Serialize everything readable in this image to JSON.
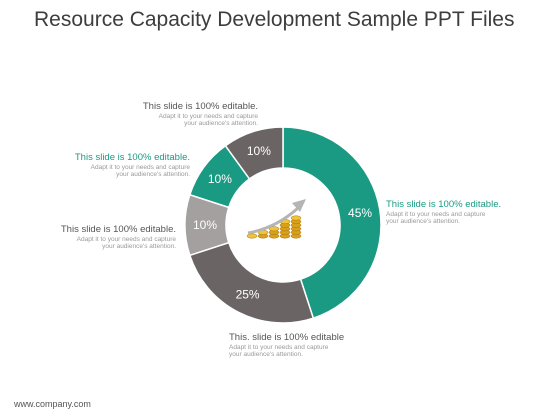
{
  "title": "Resource Capacity Development Sample PPT Files",
  "footer": "www.company.com",
  "colors": {
    "teal": "#1a9a82",
    "dark_gray": "#6a6564",
    "light_gray": "#a4a09f",
    "head_gray": "#555555",
    "white": "#ffffff"
  },
  "center_icon": "coin-stacks-growth-arrow-icon",
  "callouts": [
    {
      "heading": "This slide is 100% editable.",
      "line1": "Adapt it to your needs and capture",
      "line2": "your audience's attention."
    },
    {
      "heading": "This slide is 100% editable.",
      "line1": "Adapt it to your needs and capture",
      "line2": "your audience's attention."
    },
    {
      "heading": "This slide is 100% editable.",
      "line1": "Adapt it to your needs and capture",
      "line2": "your audience's attention."
    },
    {
      "heading": "This slide is 100% editable.",
      "line1": "Adapt it to your needs and capture",
      "line2": "your audience's attention."
    },
    {
      "heading": "This. slide is 100% editable",
      "line1": "Adapt it to your needs and capture",
      "line2": "your audience's attention."
    }
  ],
  "chart_data": {
    "type": "pie",
    "values": [
      45,
      25,
      10,
      10,
      10
    ],
    "labels": [
      "45%",
      "25%",
      "10%",
      "10%",
      "10%"
    ],
    "colors": [
      "#1a9a82",
      "#6a6564",
      "#a4a09f",
      "#1a9a82",
      "#6a6564"
    ]
  }
}
